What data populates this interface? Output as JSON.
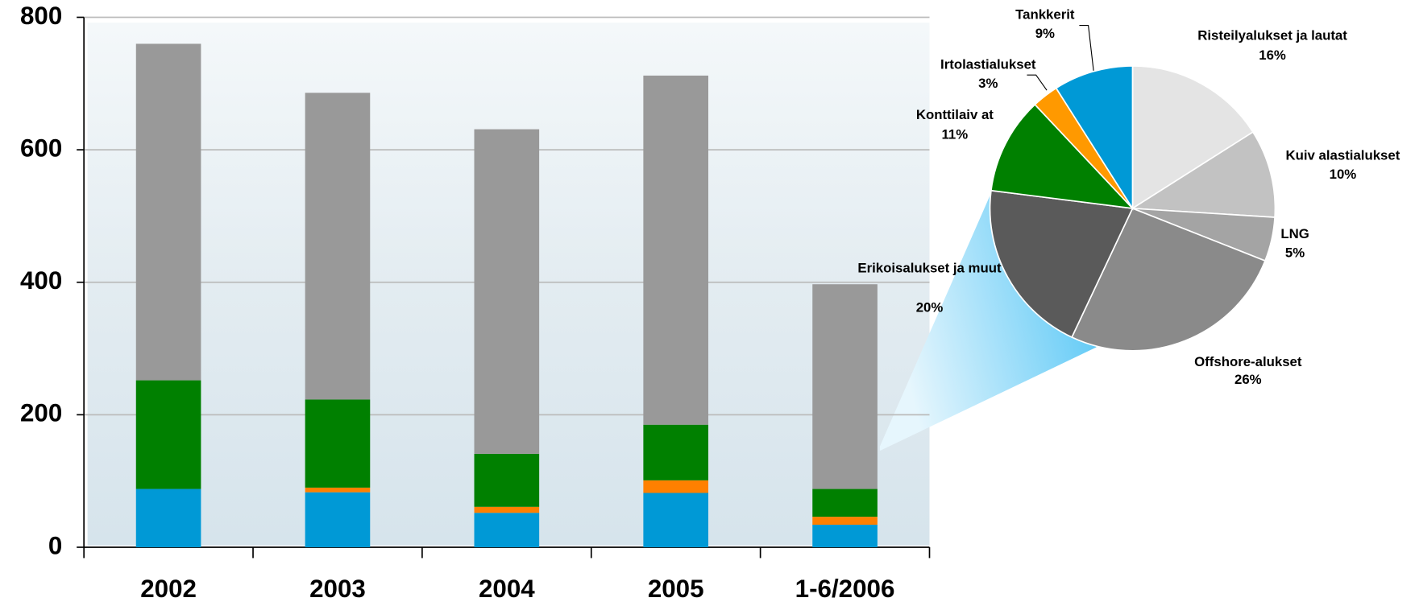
{
  "chart_data": [
    {
      "type": "stacked-bar",
      "categories": [
        "2002",
        "2003",
        "2004",
        "2005",
        "1-6/2006"
      ],
      "series": [
        {
          "color": "#0099d6",
          "values": [
            88,
            83,
            52,
            82,
            34
          ]
        },
        {
          "color": "#ff8000",
          "values": [
            0,
            7,
            9,
            19,
            12
          ]
        },
        {
          "color": "#008000",
          "values": [
            164,
            133,
            80,
            84,
            42
          ]
        },
        {
          "color": "#999999",
          "values": [
            508,
            463,
            490,
            527,
            309
          ]
        }
      ],
      "ylim": [
        0,
        800
      ],
      "yticks": [
        0,
        200,
        400,
        600,
        800
      ],
      "grid": true
    },
    {
      "type": "pie",
      "categories": [
        "Risteilyalukset ja lautat",
        "Kuiv alastialukset",
        "LNG",
        "Offshore-alukset",
        "Erikoisalukset ja muut",
        "Konttilaiv at",
        "Irtolastialukset",
        "Tankkerit"
      ],
      "values": [
        16,
        10,
        5,
        26,
        20,
        11,
        3,
        9
      ],
      "value_labels": [
        "16%",
        "10%",
        "5%",
        "26%",
        "20%",
        "11%",
        "3%",
        "9%"
      ],
      "colors": [
        "#e4e4e4",
        "#c2c2c2",
        "#a4a4a4",
        "#8a8a8a",
        "#5a5a5a",
        "#008000",
        "#ff9900",
        "#0099d6"
      ]
    }
  ]
}
